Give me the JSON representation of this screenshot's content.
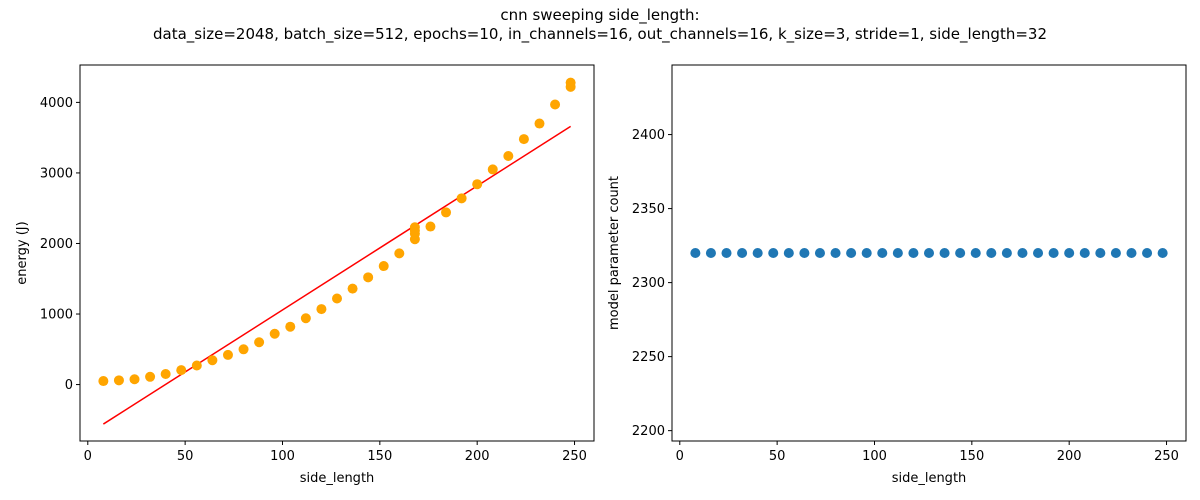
{
  "figure": {
    "title_line1": "cnn sweeping side_length:",
    "title_line2": "data_size=2048, batch_size=512, epochs=10, in_channels=16, out_channels=16, k_size=3, stride=1, side_length=32"
  },
  "chart_data": [
    {
      "type": "scatter",
      "xlabel": "side_length",
      "ylabel": "energy (J)",
      "xlim": [
        -4,
        260
      ],
      "ylim": [
        -800,
        4530
      ],
      "xticks": [
        0,
        50,
        100,
        150,
        200,
        250
      ],
      "yticks": [
        0,
        1000,
        2000,
        3000,
        4000
      ],
      "grid": false,
      "marker_color": "#ffa500",
      "x": [
        8,
        16,
        24,
        32,
        40,
        48,
        56,
        64,
        72,
        80,
        88,
        96,
        104,
        112,
        120,
        128,
        136,
        144,
        152,
        160,
        168,
        168,
        168,
        168,
        176,
        184,
        192,
        200,
        208,
        216,
        224,
        232,
        240,
        248,
        248
      ],
      "y": [
        50,
        60,
        75,
        110,
        150,
        205,
        270,
        345,
        420,
        500,
        600,
        720,
        820,
        940,
        1070,
        1220,
        1360,
        1520,
        1680,
        1860,
        2060,
        2140,
        2180,
        2230,
        2240,
        2440,
        2640,
        2840,
        3050,
        3240,
        3480,
        3700,
        3970,
        4220,
        4280
      ],
      "fit_line": {
        "color": "#ff0000",
        "x": [
          8,
          248
        ],
        "y": [
          -560,
          3660
        ]
      }
    },
    {
      "type": "scatter",
      "xlabel": "side_length",
      "ylabel": "model parameter count",
      "xlim": [
        -4,
        260
      ],
      "ylim": [
        2193,
        2447
      ],
      "xticks": [
        0,
        50,
        100,
        150,
        200,
        250
      ],
      "yticks": [
        2200,
        2250,
        2300,
        2350,
        2400
      ],
      "grid": false,
      "marker_color": "#1f77b4",
      "x": [
        8,
        16,
        24,
        32,
        40,
        48,
        56,
        64,
        72,
        80,
        88,
        96,
        104,
        112,
        120,
        128,
        136,
        144,
        152,
        160,
        168,
        176,
        184,
        192,
        200,
        208,
        216,
        224,
        232,
        240,
        248
      ],
      "y": [
        2320,
        2320,
        2320,
        2320,
        2320,
        2320,
        2320,
        2320,
        2320,
        2320,
        2320,
        2320,
        2320,
        2320,
        2320,
        2320,
        2320,
        2320,
        2320,
        2320,
        2320,
        2320,
        2320,
        2320,
        2320,
        2320,
        2320,
        2320,
        2320,
        2320,
        2320
      ]
    }
  ]
}
